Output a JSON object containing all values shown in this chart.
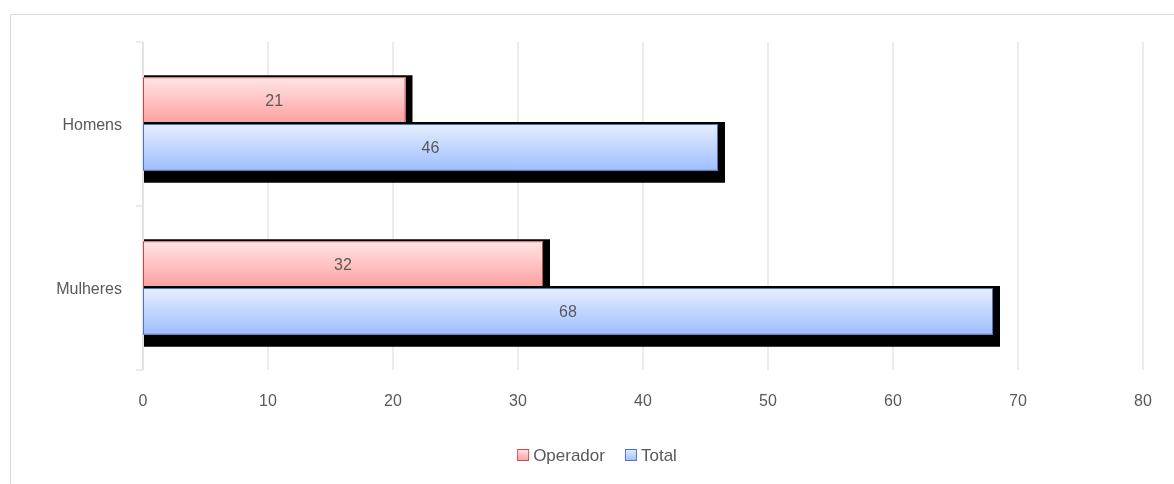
{
  "chart_data": {
    "type": "bar",
    "orientation": "horizontal",
    "categories": [
      "Homens",
      "Mulheres"
    ],
    "series": [
      {
        "name": "Operador",
        "color": "#ffc2c2",
        "values": [
          21,
          32
        ]
      },
      {
        "name": "Total",
        "color": "#c2d6ff",
        "values": [
          46,
          68
        ]
      }
    ],
    "xlim": [
      0,
      80
    ],
    "xticks": [
      0,
      10,
      20,
      30,
      40,
      50,
      60,
      70,
      80
    ],
    "grid": "x",
    "legend": "bottom",
    "data_labels": true
  }
}
